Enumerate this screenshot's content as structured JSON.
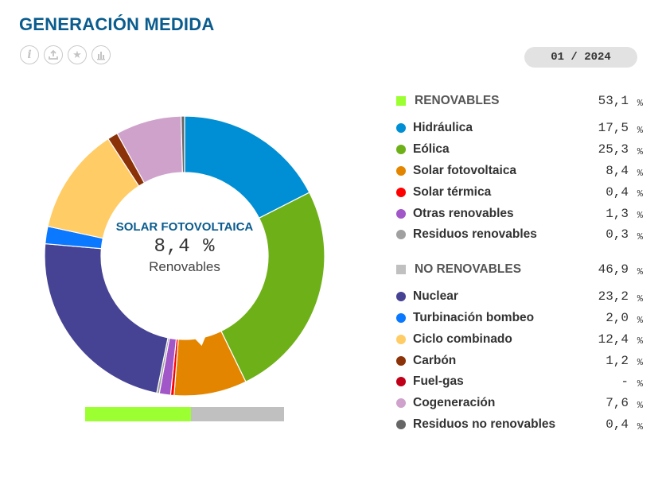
{
  "header": {
    "title": "GENERACIÓN MEDIDA",
    "date": "01 / 2024"
  },
  "toolbar": [
    {
      "name": "info-icon",
      "glyph": "i"
    },
    {
      "name": "export-icon",
      "glyph": ""
    },
    {
      "name": "favorite-icon",
      "glyph": "★"
    },
    {
      "name": "chart-icon",
      "glyph": ""
    }
  ],
  "selected": {
    "name": "SOLAR FOTOVOLTAICA",
    "value": "8,4 %",
    "group": "Renovables"
  },
  "unit": "%",
  "chart_data": {
    "type": "pie",
    "variant": "donut",
    "series": [
      {
        "group": "RENOVABLES",
        "total": "53,1",
        "total_value": 53.1,
        "color": "#9cff32",
        "items": [
          {
            "label": "Hidráulica",
            "value": 17.5,
            "display": "17,5",
            "color": "#008fd4"
          },
          {
            "label": "Eólica",
            "value": 25.3,
            "display": "25,3",
            "color": "#6eb018"
          },
          {
            "label": "Solar fotovoltaica",
            "value": 8.4,
            "display": "8,4",
            "color": "#e48500"
          },
          {
            "label": "Solar térmica",
            "value": 0.4,
            "display": "0,4",
            "color": "#ff0000"
          },
          {
            "label": "Otras renovables",
            "value": 1.3,
            "display": "1,3",
            "color": "#a157c8"
          },
          {
            "label": "Residuos renovables",
            "value": 0.3,
            "display": "0,3",
            "color": "#a0a0a0"
          }
        ]
      },
      {
        "group": "NO RENOVABLES",
        "total": "46,9",
        "total_value": 46.9,
        "color": "#c0c0c0",
        "items": [
          {
            "label": "Nuclear",
            "value": 23.2,
            "display": "23,2",
            "color": "#464394"
          },
          {
            "label": "Turbinación bombeo",
            "value": 2.0,
            "display": "2,0",
            "color": "#0a78ff"
          },
          {
            "label": "Ciclo combinado",
            "value": 12.4,
            "display": "12,4",
            "color": "#ffcc66"
          },
          {
            "label": "Carbón",
            "value": 1.2,
            "display": "1,2",
            "color": "#8c3208"
          },
          {
            "label": "Fuel-gas",
            "value": 0,
            "display": "-",
            "color": "#c00018"
          },
          {
            "label": "Cogeneración",
            "value": 7.6,
            "display": "7,6",
            "color": "#cfa2cc"
          },
          {
            "label": "Residuos no renovables",
            "value": 0.4,
            "display": "0,4",
            "color": "#666666"
          }
        ]
      }
    ]
  }
}
